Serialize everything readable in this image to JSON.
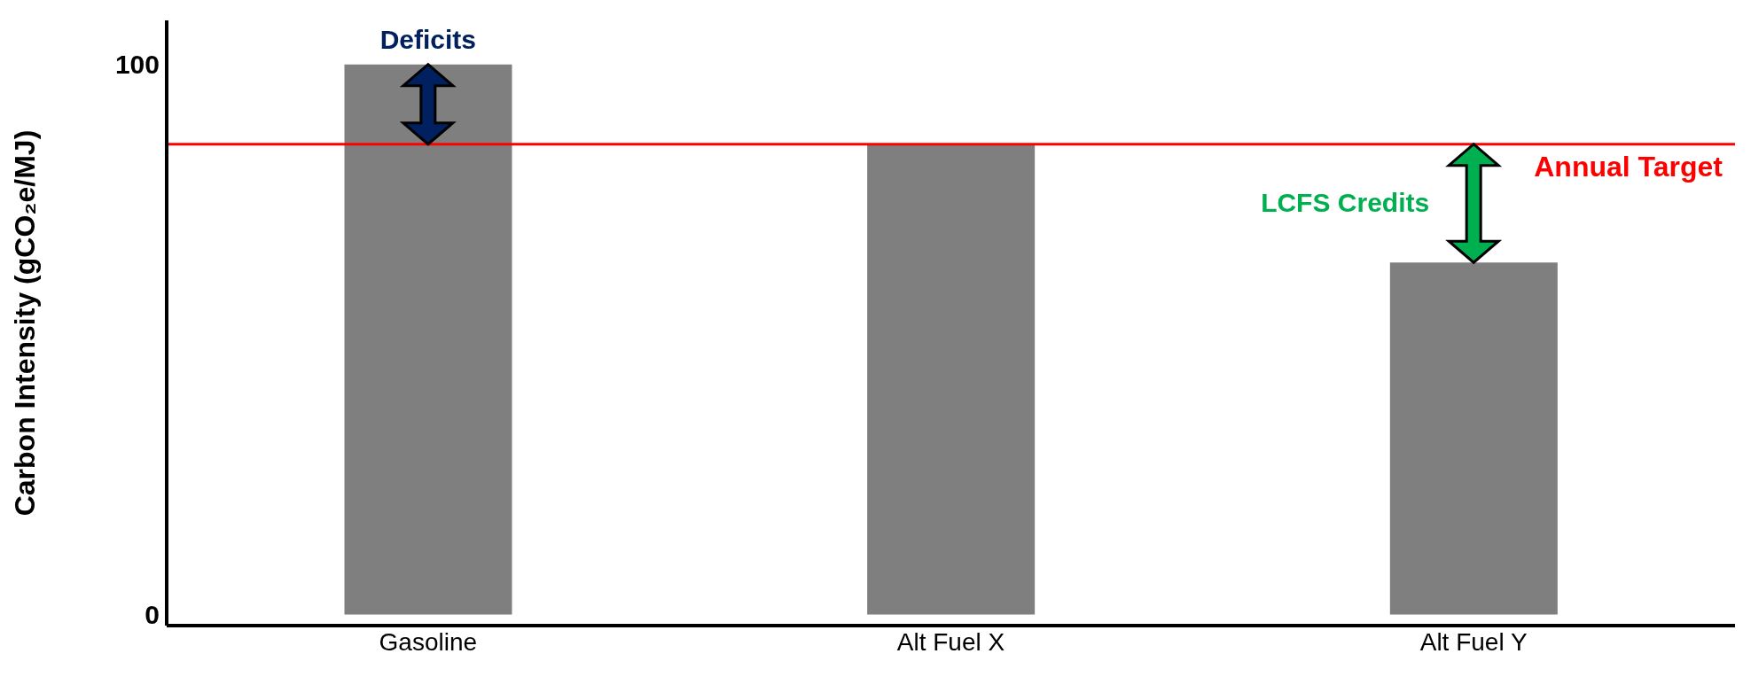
{
  "chart_data": {
    "type": "bar",
    "ylabel": "Carbon Intensity (gCO₂e/MJ)",
    "categories": [
      "Gasoline",
      "Alt Fuel X",
      "Alt Fuel Y"
    ],
    "values": [
      100,
      85.5,
      64
    ],
    "color": "#7f7f7f",
    "ylim": [
      -2,
      108
    ],
    "yticks": [
      0,
      100
    ],
    "ref_lines": [
      {
        "axis": "y",
        "value": 85.5,
        "label": "Annual Target",
        "color": "#ff0000",
        "line_style": "solid"
      }
    ],
    "annotations": [
      {
        "text": "Deficits",
        "x": "Gasoline",
        "y": 100
      },
      {
        "text": "LCFS Credits",
        "x": "Alt Fuel Y",
        "y": 64
      }
    ],
    "legend": false
  }
}
